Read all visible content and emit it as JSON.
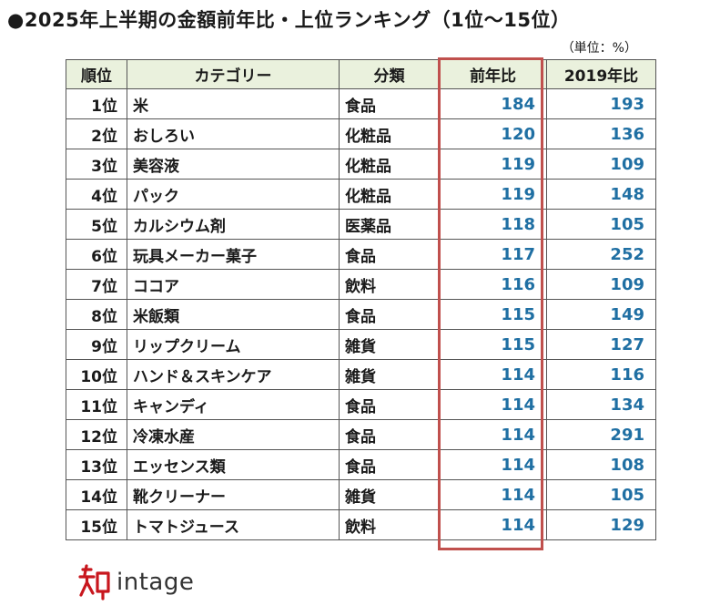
{
  "title": "●2025年上半期の金額前年比・上位ランキング（1位～15位）",
  "unit": "（単位：%）",
  "table": {
    "headers": [
      "順位",
      "カテゴリー",
      "分類",
      "前年比",
      "2019年比"
    ],
    "rows": [
      {
        "rank": "1位",
        "category": "米",
        "class": "食品",
        "yoy": "184",
        "vs2019": "193"
      },
      {
        "rank": "2位",
        "category": "おしろい",
        "class": "化粧品",
        "yoy": "120",
        "vs2019": "136"
      },
      {
        "rank": "3位",
        "category": "美容液",
        "class": "化粧品",
        "yoy": "119",
        "vs2019": "109"
      },
      {
        "rank": "4位",
        "category": "パック",
        "class": "化粧品",
        "yoy": "119",
        "vs2019": "148"
      },
      {
        "rank": "5位",
        "category": "カルシウム剤",
        "class": "医薬品",
        "yoy": "118",
        "vs2019": "105"
      },
      {
        "rank": "6位",
        "category": "玩具メーカー菓子",
        "class": "食品",
        "yoy": "117",
        "vs2019": "252"
      },
      {
        "rank": "7位",
        "category": "ココア",
        "class": "飲料",
        "yoy": "116",
        "vs2019": "109"
      },
      {
        "rank": "8位",
        "category": "米飯類",
        "class": "食品",
        "yoy": "115",
        "vs2019": "149"
      },
      {
        "rank": "9位",
        "category": "リップクリーム",
        "class": "雑貨",
        "yoy": "115",
        "vs2019": "127"
      },
      {
        "rank": "10位",
        "category": "ハンド＆スキンケア",
        "class": "雑貨",
        "yoy": "114",
        "vs2019": "116"
      },
      {
        "rank": "11位",
        "category": "キャンディ",
        "class": "食品",
        "yoy": "114",
        "vs2019": "134"
      },
      {
        "rank": "12位",
        "category": "冷凍水産",
        "class": "食品",
        "yoy": "114",
        "vs2019": "291"
      },
      {
        "rank": "13位",
        "category": "エッセンス類",
        "class": "食品",
        "yoy": "114",
        "vs2019": "108"
      },
      {
        "rank": "14位",
        "category": "靴クリーナー",
        "class": "雑貨",
        "yoy": "114",
        "vs2019": "105"
      },
      {
        "rank": "15位",
        "category": "トマトジュース",
        "class": "飲料",
        "yoy": "114",
        "vs2019": "129"
      }
    ]
  },
  "colors": {
    "header_bg": "#eaf1dd",
    "number_text": "#1f6fa3",
    "highlight_border": "#c0504d",
    "logo_red": "#c8171e"
  },
  "logo": {
    "text": "intage",
    "mark_text": "知",
    "icon": "intage-logo-mark-icon"
  }
}
